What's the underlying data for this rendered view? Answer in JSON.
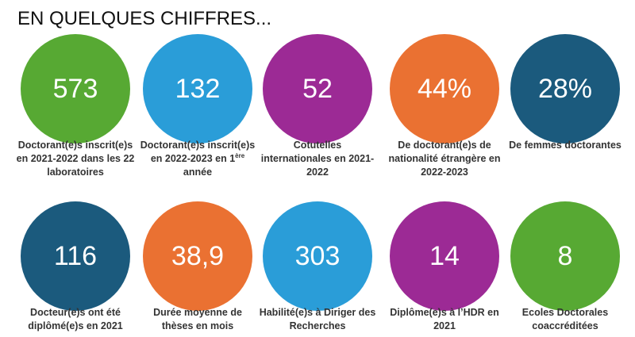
{
  "title": "EN QUELQUES CHIFFRES...",
  "items": [
    {
      "value": "573",
      "label": "Doctorant(e)s inscrit(e)s en 2021-2022 dans les 22 laboratoires",
      "color": "#57a933"
    },
    {
      "value": "132",
      "label": "Doctorant(e)s inscrit(e)s en 2022-2023 en 1",
      "label_sup": "ère",
      "label_after": "année",
      "color": "#2a9dd8"
    },
    {
      "value": "52",
      "label": "Cotutelles internationales en 2021-2022",
      "color": "#9c2a95"
    },
    {
      "value": "44%",
      "label": "De doctorant(e)s de nationalité étrangère en 2022-2023",
      "color": "#ea7132"
    },
    {
      "value": "28%",
      "label": "De femmes doctorantes",
      "color": "#1b5a7d"
    },
    {
      "value": "116",
      "label": "Docteur(e)s ont été diplômé(e)s en 2021",
      "color": "#1b5a7d"
    },
    {
      "value": "38,9",
      "label": "Durée moyenne de thèses en mois",
      "color": "#ea7132"
    },
    {
      "value": "303",
      "label": "Habilité(e)s à Diriger des Recherches",
      "color": "#2a9dd8"
    },
    {
      "value": "14",
      "label": "Diplôme(e)s à l’HDR en 2021",
      "color": "#9c2a95"
    },
    {
      "value": "8",
      "label": "Ecoles Doctorales coaccréditées",
      "color": "#57a933"
    }
  ]
}
